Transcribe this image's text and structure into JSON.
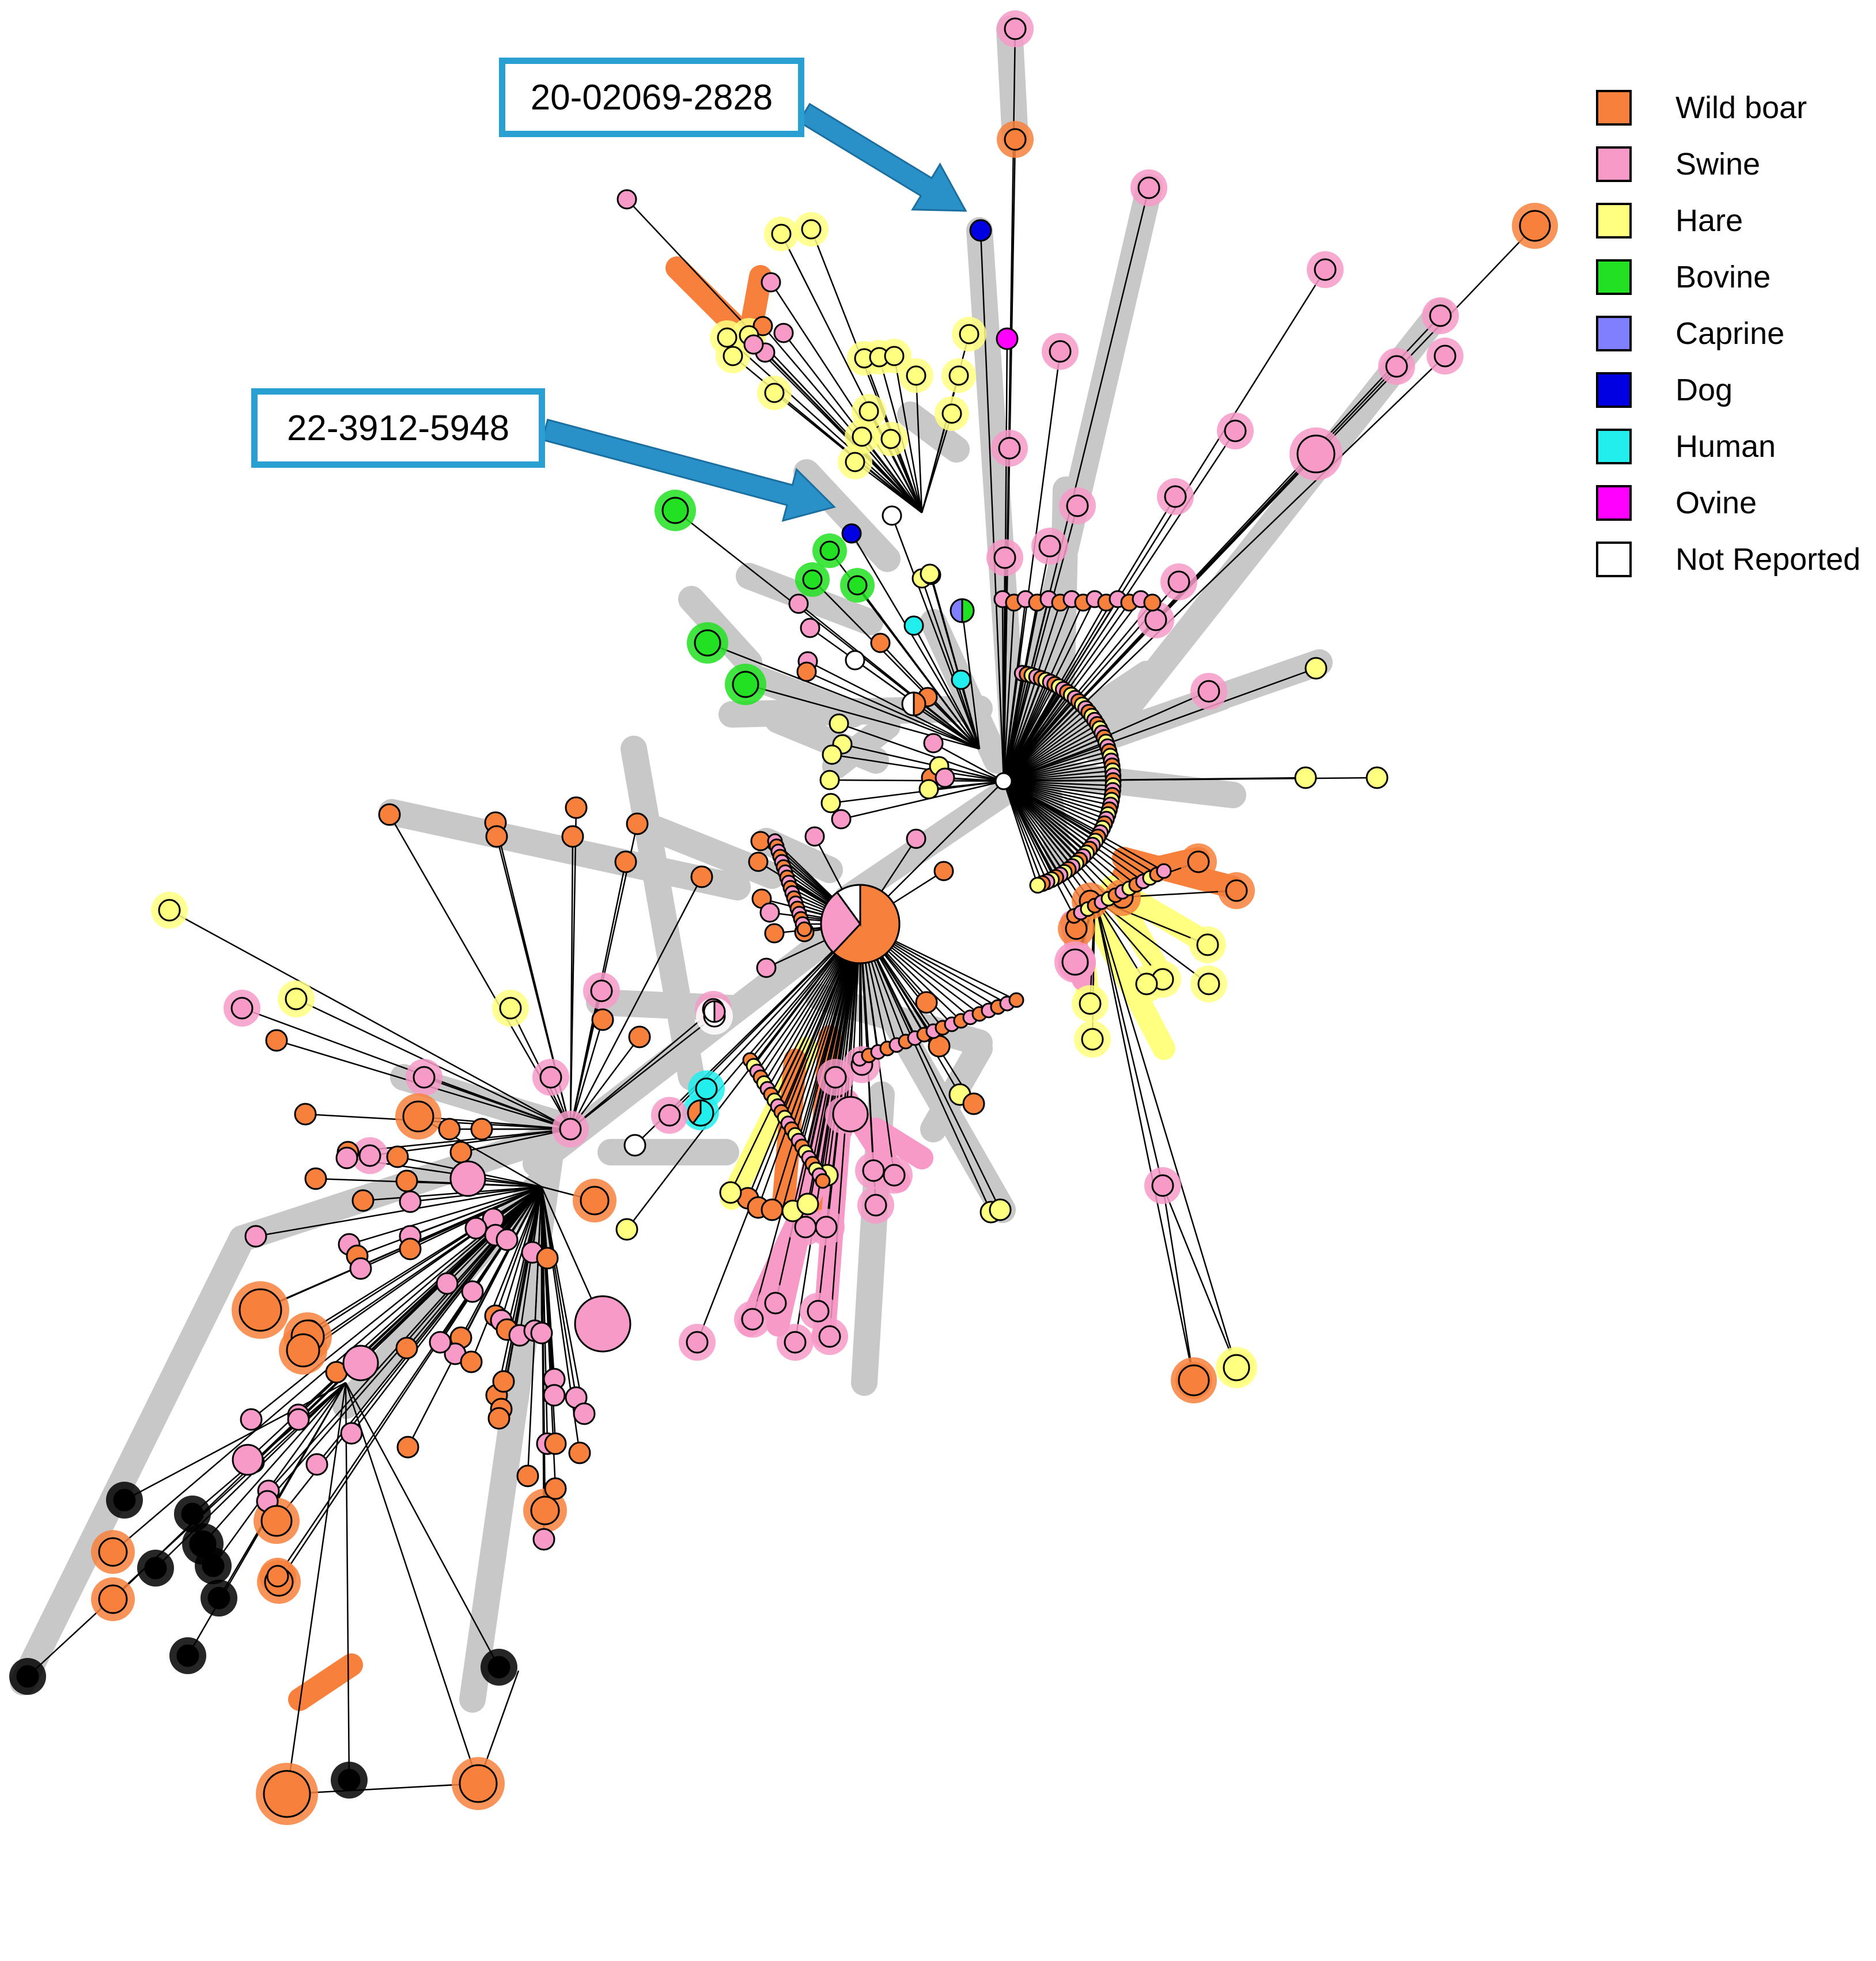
{
  "colors": {
    "branch": "#c8c8c8",
    "edge": "#000000",
    "callout_border": "#2aa0d2",
    "arrow": "#2a90c8"
  },
  "legend": [
    {
      "label": "Wild boar",
      "color": "#f7813c"
    },
    {
      "label": "Swine",
      "color": "#f79ac8"
    },
    {
      "label": "Hare",
      "color": "#ffff80"
    },
    {
      "label": "Bovine",
      "color": "#22e022"
    },
    {
      "label": "Caprine",
      "color": "#8080ff"
    },
    {
      "label": "Dog",
      "color": "#0000e0"
    },
    {
      "label": "Human",
      "color": "#22eeee"
    },
    {
      "label": "Ovine",
      "color": "#ff00ff"
    },
    {
      "label": "Not Reported",
      "color": "#ffffff"
    }
  ],
  "callouts": [
    {
      "label": "20-02069-2828",
      "host": "Dog"
    },
    {
      "label": "22-3912-5948",
      "host": "Dog"
    }
  ]
}
